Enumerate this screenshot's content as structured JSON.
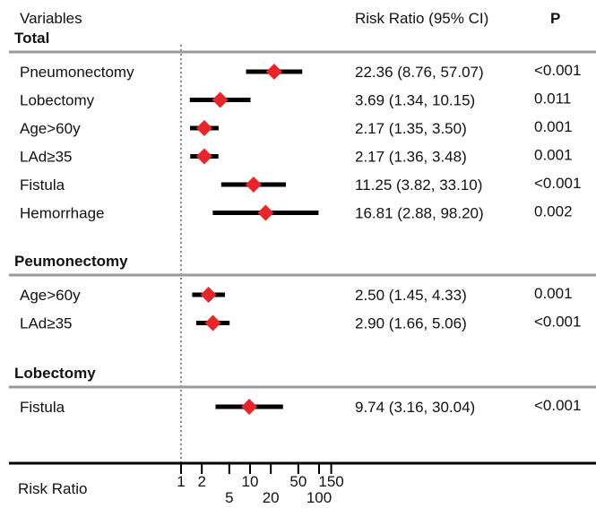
{
  "headers": {
    "variables": "Variables",
    "risk_ratio_ci": "Risk Ratio (95% CI)",
    "p": "P"
  },
  "x_axis_label": "Risk Ratio",
  "colors": {
    "marker": "#e8262a",
    "ci_line": "#000000",
    "separator": "#9a9a9a",
    "reference_line": "#888888"
  },
  "chart_data": {
    "type": "forest",
    "x_scale": "log",
    "reference_value": 1,
    "x_ticks_upper": [
      1,
      2,
      10,
      50,
      150
    ],
    "x_ticks_lower": [
      5,
      20,
      100
    ],
    "groups": [
      {
        "name": "Total",
        "rows": [
          {
            "label": "Pneumonectomy",
            "rr": 22.36,
            "lo": 8.76,
            "hi": 57.07,
            "ci_text": "22.36 (8.76, 57.07)",
            "p": "<0.001"
          },
          {
            "label": "Lobectomy",
            "rr": 3.69,
            "lo": 1.34,
            "hi": 10.15,
            "ci_text": "3.69 (1.34, 10.15)",
            "p": "0.011"
          },
          {
            "label": "Age>60y",
            "rr": 2.17,
            "lo": 1.35,
            "hi": 3.5,
            "ci_text": "2.17 (1.35, 3.50)",
            "p": "0.001"
          },
          {
            "label": "LAd≥35",
            "rr": 2.17,
            "lo": 1.36,
            "hi": 3.48,
            "ci_text": "2.17 (1.36, 3.48)",
            "p": "0.001"
          },
          {
            "label": "Fistula",
            "rr": 11.25,
            "lo": 3.82,
            "hi": 33.1,
            "ci_text": "11.25 (3.82, 33.10)",
            "p": "<0.001"
          },
          {
            "label": "Hemorrhage",
            "rr": 16.81,
            "lo": 2.88,
            "hi": 98.2,
            "ci_text": "16.81 (2.88, 98.20)",
            "p": "0.002"
          }
        ]
      },
      {
        "name": "Peumonectomy",
        "rows": [
          {
            "label": "Age>60y",
            "rr": 2.5,
            "lo": 1.45,
            "hi": 4.33,
            "ci_text": "2.50 (1.45, 4.33)",
            "p": "0.001"
          },
          {
            "label": "LAd≥35",
            "rr": 2.9,
            "lo": 1.66,
            "hi": 5.06,
            "ci_text": "2.90 (1.66, 5.06)",
            "p": "<0.001"
          }
        ]
      },
      {
        "name": "Lobectomy",
        "rows": [
          {
            "label": "Fistula",
            "rr": 9.74,
            "lo": 3.16,
            "hi": 30.04,
            "ci_text": "9.74 (3.16, 30.04)",
            "p": "<0.001"
          }
        ]
      }
    ]
  }
}
